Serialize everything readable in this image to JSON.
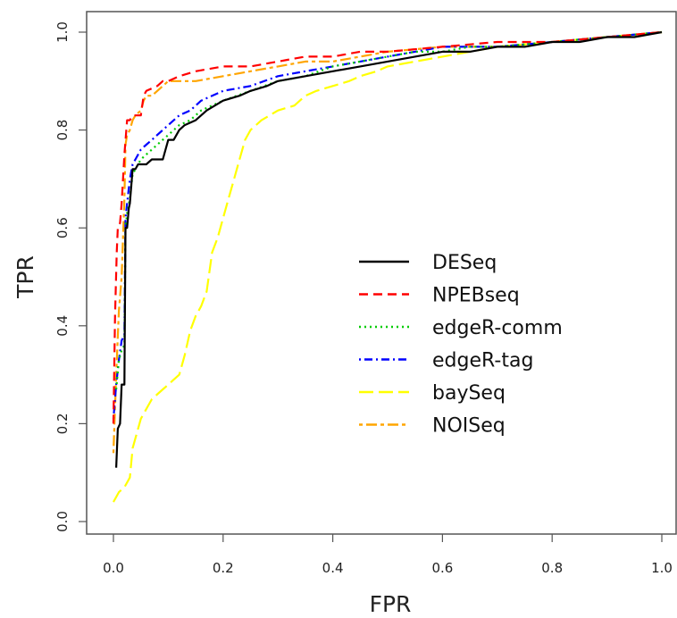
{
  "chart_data": {
    "type": "line",
    "title": "",
    "xlabel": "FPR",
    "ylabel": "TPR",
    "xlim": [
      0,
      1
    ],
    "ylim": [
      0,
      1
    ],
    "x_ticks": [
      "0.0",
      "0.2",
      "0.4",
      "0.6",
      "0.8",
      "1.0"
    ],
    "y_ticks": [
      "0.0",
      "0.2",
      "0.4",
      "0.6",
      "0.8",
      "1.0"
    ],
    "grid": false,
    "legend_position": "center-right",
    "series": [
      {
        "name": "DESeq",
        "color": "#000000",
        "dash": "solid",
        "points": [
          [
            0.005,
            0.11
          ],
          [
            0.008,
            0.19
          ],
          [
            0.012,
            0.2
          ],
          [
            0.015,
            0.28
          ],
          [
            0.02,
            0.28
          ],
          [
            0.022,
            0.6
          ],
          [
            0.025,
            0.6
          ],
          [
            0.028,
            0.64
          ],
          [
            0.03,
            0.65
          ],
          [
            0.035,
            0.72
          ],
          [
            0.04,
            0.72
          ],
          [
            0.045,
            0.73
          ],
          [
            0.06,
            0.73
          ],
          [
            0.07,
            0.74
          ],
          [
            0.08,
            0.74
          ],
          [
            0.09,
            0.74
          ],
          [
            0.1,
            0.78
          ],
          [
            0.11,
            0.78
          ],
          [
            0.12,
            0.8
          ],
          [
            0.13,
            0.81
          ],
          [
            0.15,
            0.82
          ],
          [
            0.17,
            0.84
          ],
          [
            0.2,
            0.86
          ],
          [
            0.23,
            0.87
          ],
          [
            0.25,
            0.88
          ],
          [
            0.28,
            0.89
          ],
          [
            0.3,
            0.9
          ],
          [
            0.35,
            0.91
          ],
          [
            0.4,
            0.92
          ],
          [
            0.45,
            0.93
          ],
          [
            0.5,
            0.94
          ],
          [
            0.55,
            0.95
          ],
          [
            0.6,
            0.96
          ],
          [
            0.65,
            0.96
          ],
          [
            0.7,
            0.97
          ],
          [
            0.75,
            0.97
          ],
          [
            0.8,
            0.98
          ],
          [
            0.85,
            0.98
          ],
          [
            0.9,
            0.99
          ],
          [
            0.95,
            0.99
          ],
          [
            1.0,
            1.0
          ]
        ]
      },
      {
        "name": "NPEBseq",
        "color": "#ff0000",
        "dash": "dashed",
        "points": [
          [
            0.0,
            0.2
          ],
          [
            0.003,
            0.42
          ],
          [
            0.006,
            0.55
          ],
          [
            0.008,
            0.6
          ],
          [
            0.012,
            0.61
          ],
          [
            0.015,
            0.65
          ],
          [
            0.02,
            0.75
          ],
          [
            0.025,
            0.82
          ],
          [
            0.03,
            0.82
          ],
          [
            0.035,
            0.83
          ],
          [
            0.05,
            0.83
          ],
          [
            0.055,
            0.87
          ],
          [
            0.06,
            0.88
          ],
          [
            0.08,
            0.89
          ],
          [
            0.09,
            0.9
          ],
          [
            0.1,
            0.9
          ],
          [
            0.12,
            0.91
          ],
          [
            0.15,
            0.92
          ],
          [
            0.2,
            0.93
          ],
          [
            0.25,
            0.93
          ],
          [
            0.3,
            0.94
          ],
          [
            0.35,
            0.95
          ],
          [
            0.4,
            0.95
          ],
          [
            0.45,
            0.96
          ],
          [
            0.5,
            0.96
          ],
          [
            0.6,
            0.97
          ],
          [
            0.7,
            0.98
          ],
          [
            0.8,
            0.98
          ],
          [
            0.9,
            0.99
          ],
          [
            1.0,
            1.0
          ]
        ]
      },
      {
        "name": "edgeR-comm",
        "color": "#00cc00",
        "dash": "dotted",
        "points": [
          [
            0.005,
            0.27
          ],
          [
            0.01,
            0.33
          ],
          [
            0.015,
            0.35
          ],
          [
            0.02,
            0.36
          ],
          [
            0.022,
            0.6
          ],
          [
            0.025,
            0.63
          ],
          [
            0.03,
            0.66
          ],
          [
            0.035,
            0.71
          ],
          [
            0.04,
            0.72
          ],
          [
            0.05,
            0.74
          ],
          [
            0.06,
            0.75
          ],
          [
            0.07,
            0.76
          ],
          [
            0.08,
            0.77
          ],
          [
            0.1,
            0.79
          ],
          [
            0.12,
            0.81
          ],
          [
            0.14,
            0.82
          ],
          [
            0.16,
            0.84
          ],
          [
            0.18,
            0.85
          ],
          [
            0.2,
            0.86
          ],
          [
            0.25,
            0.88
          ],
          [
            0.3,
            0.9
          ],
          [
            0.35,
            0.91
          ],
          [
            0.4,
            0.93
          ],
          [
            0.45,
            0.94
          ],
          [
            0.5,
            0.95
          ],
          [
            0.55,
            0.96
          ],
          [
            0.6,
            0.96
          ],
          [
            0.65,
            0.97
          ],
          [
            0.7,
            0.97
          ],
          [
            0.8,
            0.98
          ],
          [
            0.9,
            0.99
          ],
          [
            1.0,
            1.0
          ]
        ]
      },
      {
        "name": "edgeR-tag",
        "color": "#0000ff",
        "dash": "dashdot",
        "points": [
          [
            0.0,
            0.21
          ],
          [
            0.005,
            0.28
          ],
          [
            0.01,
            0.33
          ],
          [
            0.015,
            0.37
          ],
          [
            0.02,
            0.38
          ],
          [
            0.022,
            0.62
          ],
          [
            0.025,
            0.65
          ],
          [
            0.03,
            0.7
          ],
          [
            0.035,
            0.73
          ],
          [
            0.04,
            0.74
          ],
          [
            0.05,
            0.76
          ],
          [
            0.06,
            0.77
          ],
          [
            0.07,
            0.78
          ],
          [
            0.08,
            0.79
          ],
          [
            0.1,
            0.81
          ],
          [
            0.12,
            0.83
          ],
          [
            0.14,
            0.84
          ],
          [
            0.16,
            0.86
          ],
          [
            0.18,
            0.87
          ],
          [
            0.2,
            0.88
          ],
          [
            0.25,
            0.89
          ],
          [
            0.3,
            0.91
          ],
          [
            0.35,
            0.92
          ],
          [
            0.4,
            0.93
          ],
          [
            0.45,
            0.94
          ],
          [
            0.5,
            0.95
          ],
          [
            0.55,
            0.96
          ],
          [
            0.6,
            0.97
          ],
          [
            0.7,
            0.97
          ],
          [
            0.8,
            0.98
          ],
          [
            0.9,
            0.99
          ],
          [
            1.0,
            1.0
          ]
        ]
      },
      {
        "name": "baySeq",
        "color": "#ffff00",
        "dash": "longdash",
        "points": [
          [
            0.0,
            0.04
          ],
          [
            0.01,
            0.06
          ],
          [
            0.02,
            0.07
          ],
          [
            0.03,
            0.09
          ],
          [
            0.035,
            0.15
          ],
          [
            0.04,
            0.17
          ],
          [
            0.05,
            0.21
          ],
          [
            0.06,
            0.23
          ],
          [
            0.07,
            0.25
          ],
          [
            0.08,
            0.26
          ],
          [
            0.09,
            0.27
          ],
          [
            0.1,
            0.28
          ],
          [
            0.11,
            0.29
          ],
          [
            0.12,
            0.3
          ],
          [
            0.13,
            0.34
          ],
          [
            0.14,
            0.39
          ],
          [
            0.15,
            0.42
          ],
          [
            0.16,
            0.44
          ],
          [
            0.17,
            0.47
          ],
          [
            0.18,
            0.55
          ],
          [
            0.19,
            0.58
          ],
          [
            0.2,
            0.62
          ],
          [
            0.21,
            0.66
          ],
          [
            0.22,
            0.7
          ],
          [
            0.23,
            0.74
          ],
          [
            0.24,
            0.78
          ],
          [
            0.25,
            0.8
          ],
          [
            0.27,
            0.82
          ],
          [
            0.3,
            0.84
          ],
          [
            0.33,
            0.85
          ],
          [
            0.35,
            0.87
          ],
          [
            0.37,
            0.88
          ],
          [
            0.4,
            0.89
          ],
          [
            0.43,
            0.9
          ],
          [
            0.45,
            0.91
          ],
          [
            0.48,
            0.92
          ],
          [
            0.5,
            0.93
          ],
          [
            0.55,
            0.94
          ],
          [
            0.6,
            0.95
          ],
          [
            0.7,
            0.97
          ],
          [
            0.8,
            0.98
          ],
          [
            0.9,
            0.99
          ],
          [
            1.0,
            1.0
          ]
        ]
      },
      {
        "name": "NOISeq",
        "color": "#ffa500",
        "dash": "twodash",
        "points": [
          [
            0.0,
            0.14
          ],
          [
            0.005,
            0.3
          ],
          [
            0.01,
            0.43
          ],
          [
            0.015,
            0.5
          ],
          [
            0.02,
            0.66
          ],
          [
            0.022,
            0.77
          ],
          [
            0.025,
            0.79
          ],
          [
            0.03,
            0.8
          ],
          [
            0.035,
            0.82
          ],
          [
            0.04,
            0.83
          ],
          [
            0.05,
            0.84
          ],
          [
            0.055,
            0.86
          ],
          [
            0.06,
            0.87
          ],
          [
            0.07,
            0.87
          ],
          [
            0.08,
            0.88
          ],
          [
            0.09,
            0.89
          ],
          [
            0.1,
            0.9
          ],
          [
            0.15,
            0.9
          ],
          [
            0.2,
            0.91
          ],
          [
            0.25,
            0.92
          ],
          [
            0.3,
            0.93
          ],
          [
            0.35,
            0.94
          ],
          [
            0.4,
            0.94
          ],
          [
            0.45,
            0.95
          ],
          [
            0.5,
            0.96
          ],
          [
            0.6,
            0.97
          ],
          [
            0.7,
            0.97
          ],
          [
            0.8,
            0.98
          ],
          [
            0.9,
            0.99
          ],
          [
            1.0,
            1.0
          ]
        ]
      }
    ]
  }
}
